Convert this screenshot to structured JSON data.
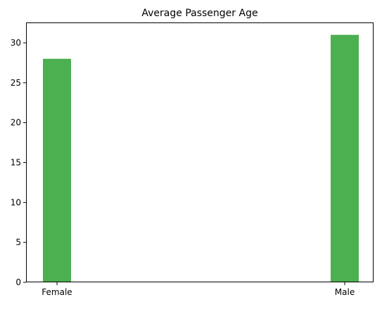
{
  "chart_data": {
    "type": "bar",
    "title": "Average Passenger Age",
    "xlabel": "",
    "ylabel": "",
    "categories": [
      "Female",
      "Male"
    ],
    "values": [
      28,
      31
    ],
    "ylim": [
      0,
      32.55
    ],
    "yticks": [
      "0",
      "5",
      "10",
      "15",
      "20",
      "25",
      "30"
    ],
    "bar_color": "#4caf50",
    "grid": false,
    "legend": "none"
  }
}
